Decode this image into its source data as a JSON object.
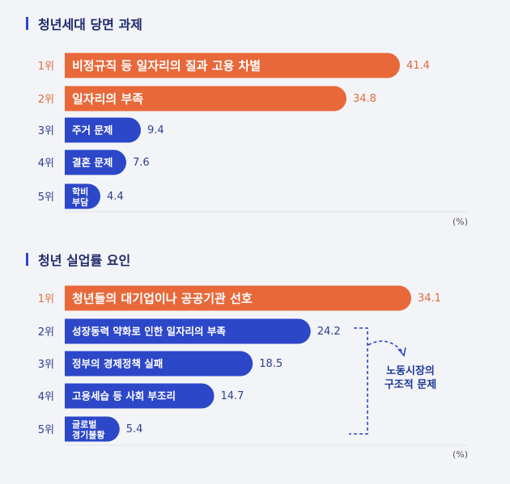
{
  "colors": {
    "orange": "#e8683a",
    "blue": "#2d47c9",
    "orange_text": "#e26a3b",
    "blue_text": "#2d3f8f",
    "baseline": "#dfe2ea",
    "bracket": "#2d47c9"
  },
  "chart_data": [
    {
      "type": "bar",
      "orientation": "horizontal",
      "title": "청년세대 당면 과제",
      "unit": "(%)",
      "xlim": [
        0,
        41.4
      ],
      "categories": [
        {
          "rank": "1위",
          "label": "비정규직 등 일자리의 질과 고용 차별",
          "lines": [
            "비정규직 등 일자리의 질과 고용 차별"
          ],
          "value": 41.4,
          "value_label": "41.4",
          "highlight": true
        },
        {
          "rank": "2위",
          "label": "일자리의 부족",
          "lines": [
            "일자리의 부족"
          ],
          "value": 34.8,
          "value_label": "34.8",
          "highlight": true
        },
        {
          "rank": "3위",
          "label": "주거 문제",
          "lines": [
            "주거 문제"
          ],
          "value": 9.4,
          "value_label": "9.4",
          "highlight": false
        },
        {
          "rank": "4위",
          "label": "결혼 문제",
          "lines": [
            "결혼 문제"
          ],
          "value": 7.6,
          "value_label": "7.6",
          "highlight": false
        },
        {
          "rank": "5위",
          "label": "학비 부담",
          "lines": [
            "학비",
            "부담"
          ],
          "value": 4.4,
          "value_label": "4.4",
          "highlight": false
        }
      ]
    },
    {
      "type": "bar",
      "orientation": "horizontal",
      "title": "청년 실업률 요인",
      "unit": "(%)",
      "xlim": [
        0,
        34.1
      ],
      "categories": [
        {
          "rank": "1위",
          "label": "청년들의 대기업이나 공공기관 선호",
          "lines": [
            "청년들의 대기업이나 공공기관 선호"
          ],
          "value": 34.1,
          "value_label": "34.1",
          "highlight": true
        },
        {
          "rank": "2위",
          "label": "성장동력 약화로 인한 일자리의 부족",
          "lines": [
            "성장동력 약화로 인한 일자리의 부족"
          ],
          "value": 24.2,
          "value_label": "24.2",
          "highlight": false
        },
        {
          "rank": "3위",
          "label": "정부의 경제정책 실패",
          "lines": [
            "정부의 경제정책 실패"
          ],
          "value": 18.5,
          "value_label": "18.5",
          "highlight": false
        },
        {
          "rank": "4위",
          "label": "고용세습 등 사회 부조리",
          "lines": [
            "고용세습 등 사회 부조리"
          ],
          "value": 14.7,
          "value_label": "14.7",
          "highlight": false
        },
        {
          "rank": "5위",
          "label": "글로벌 경기불황",
          "lines": [
            "글로벌",
            "경기불황"
          ],
          "value": 5.4,
          "value_label": "5.4",
          "highlight": false
        }
      ],
      "annotation": {
        "lines": [
          "노동시장의",
          "구조적 문제"
        ],
        "covers_ranks": [
          "2위",
          "3위",
          "4위",
          "5위"
        ]
      }
    }
  ]
}
